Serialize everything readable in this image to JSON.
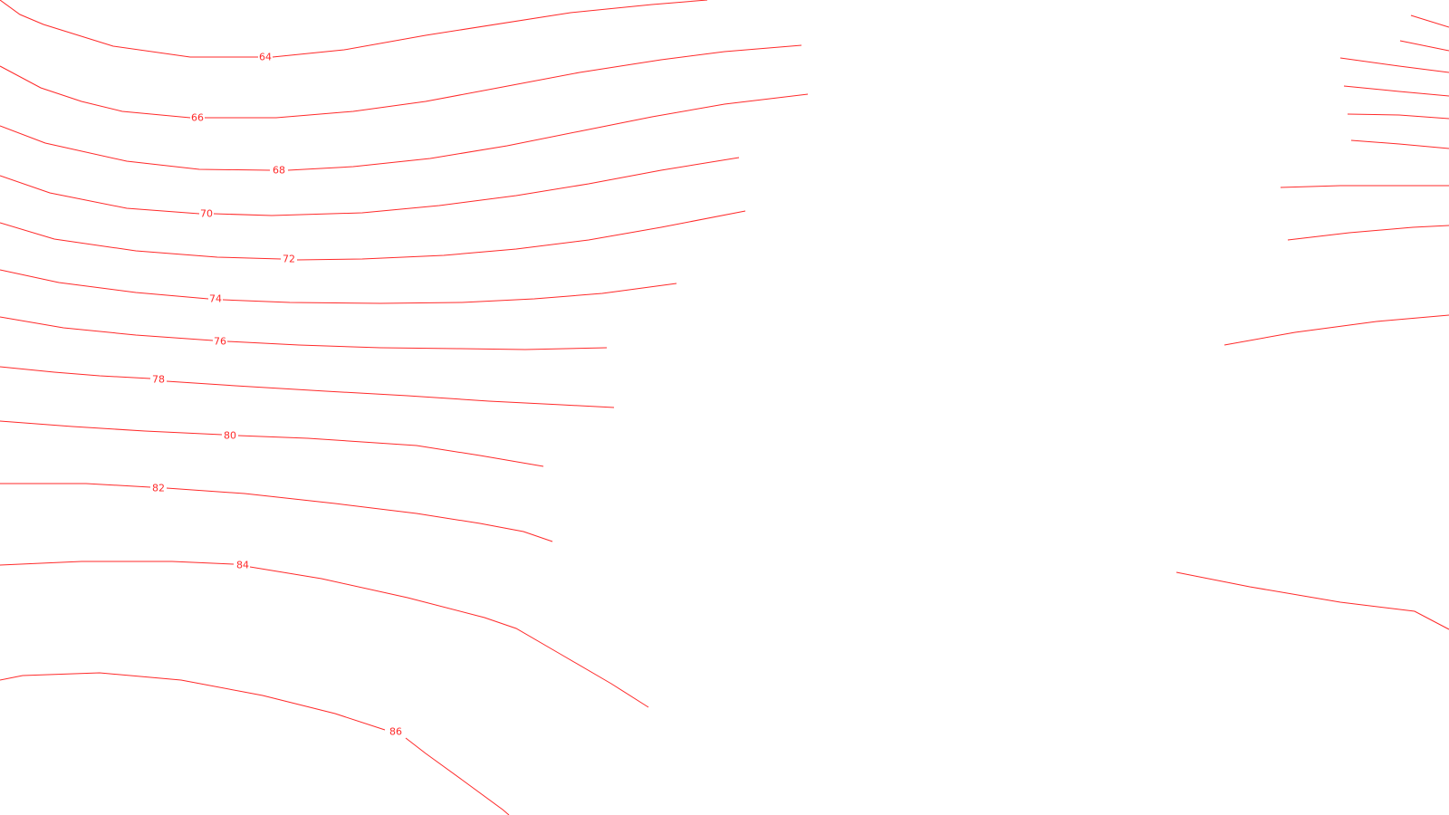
{
  "style": {
    "contour_color": "#ff2a2a",
    "background": "#ffffff"
  },
  "contours": [
    {
      "label": "64"
    },
    {
      "label": "66"
    },
    {
      "label": "68"
    },
    {
      "label": "70"
    },
    {
      "label": "72"
    },
    {
      "label": "74"
    },
    {
      "label": "76"
    },
    {
      "label": "78"
    },
    {
      "label": "80"
    },
    {
      "label": "82"
    },
    {
      "label": "84"
    },
    {
      "label": "86"
    }
  ]
}
